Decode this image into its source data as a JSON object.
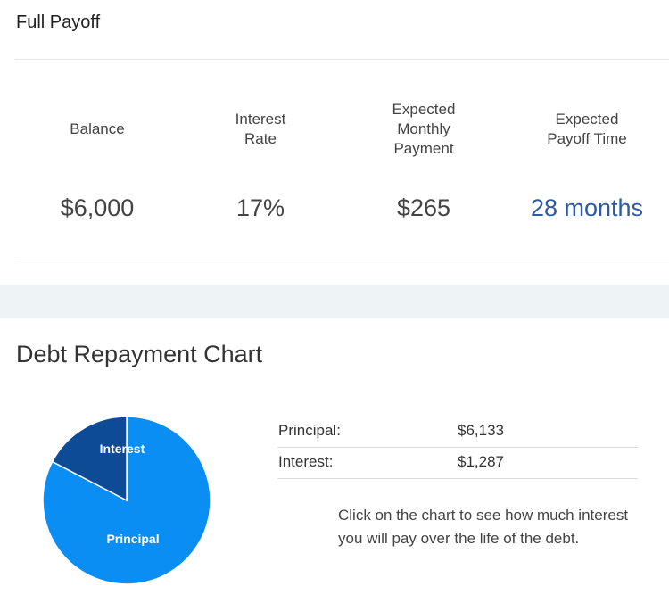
{
  "payoff": {
    "title": "Full Payoff",
    "stats": [
      {
        "label": "Balance",
        "value": "$6,000"
      },
      {
        "label": "Interest Rate",
        "value": "17%"
      },
      {
        "label": "Expected Monthly Payment",
        "value": "$265"
      },
      {
        "label": "Expected Payoff Time",
        "value": "28 months"
      }
    ]
  },
  "chart": {
    "title": "Debt Repayment Chart",
    "note": "Click on the chart to see how much interest you will pay over the life of the debt.",
    "rows": [
      {
        "label": "Principal:",
        "value": "$6,133"
      },
      {
        "label": "Interest:",
        "value": "$1,287"
      }
    ]
  },
  "chart_data": {
    "type": "pie",
    "categories": [
      "Principal",
      "Interest"
    ],
    "values": [
      6133,
      1287
    ],
    "colors": [
      "#0b8ef3",
      "#0d4b97"
    ],
    "title": ""
  }
}
